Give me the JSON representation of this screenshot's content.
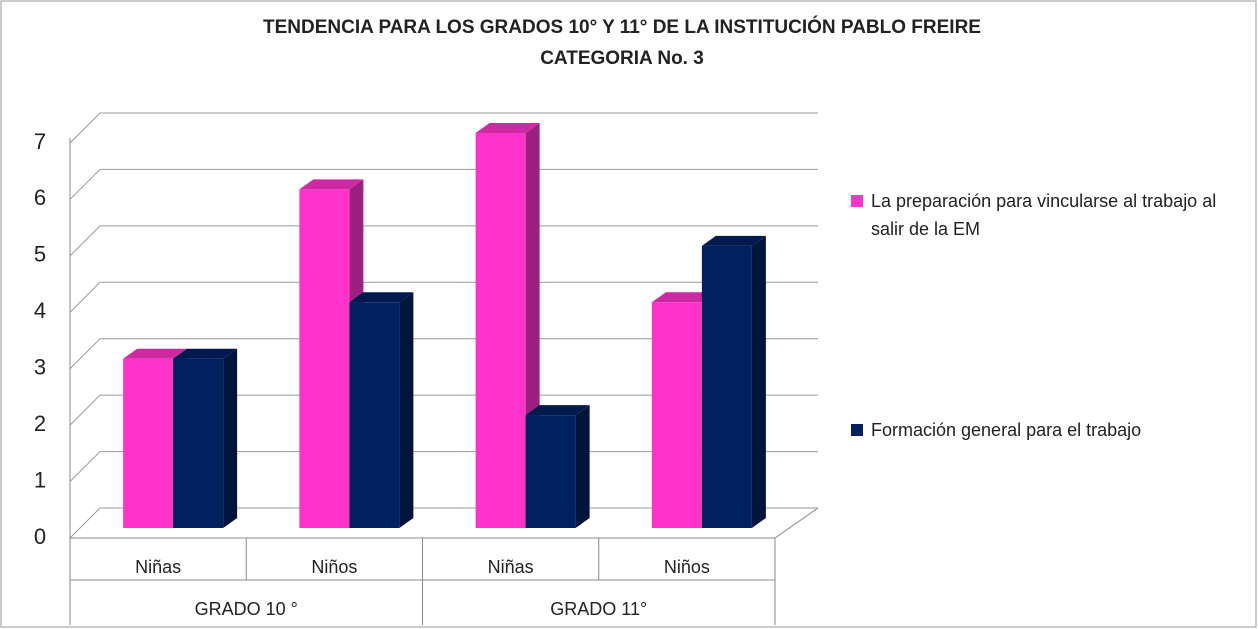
{
  "chart_data": {
    "type": "bar3d",
    "title": "TENDENCIA PARA LOS GRADOS 10° Y 11°  DE LA INSTITUCIÓN PABLO FREIRE",
    "subtitle": "CATEGORIA  No. 3",
    "categories": [
      "Niñas",
      "Niños",
      "Niñas",
      "Niños"
    ],
    "groups": [
      "GRADO 10 °",
      "GRADO 11°"
    ],
    "series": [
      {
        "name": "La preparación para vincularse al trabajo al salir de la EM",
        "color": "#ff33cc",
        "values": [
          3,
          6,
          7,
          4
        ]
      },
      {
        "name": "Formación general para el trabajo",
        "color": "#002060",
        "values": [
          3,
          4,
          2,
          5
        ]
      }
    ],
    "ylim": [
      0,
      7
    ],
    "yticks": [
      0,
      1,
      2,
      3,
      4,
      5,
      6,
      7
    ],
    "grid": true,
    "legend": "right"
  }
}
